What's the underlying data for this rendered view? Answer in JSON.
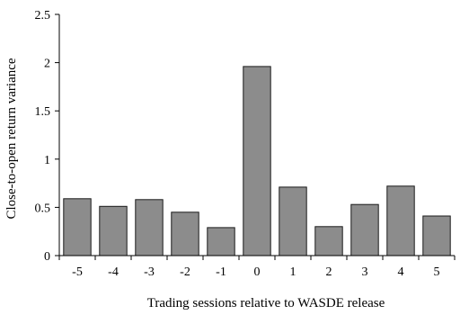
{
  "chart_data": {
    "type": "bar",
    "title": "",
    "xlabel": "Trading sessions relative to WASDE release",
    "ylabel": "Close-to-open return variance",
    "categories": [
      "-5",
      "-4",
      "-3",
      "-2",
      "-1",
      "0",
      "1",
      "2",
      "3",
      "4",
      "5"
    ],
    "values": [
      0.59,
      0.51,
      0.58,
      0.45,
      0.29,
      1.96,
      0.71,
      0.3,
      0.53,
      0.72,
      0.41
    ],
    "ylim": [
      0,
      2.5
    ],
    "yticks": [
      "0",
      "0.5",
      "1",
      "1.5",
      "2",
      "2.5"
    ],
    "grid": false,
    "legend": "none",
    "colors": {
      "bar_fill": "#8c8c8c",
      "bar_stroke": "#1a1a1a",
      "axis": "#000000"
    }
  }
}
